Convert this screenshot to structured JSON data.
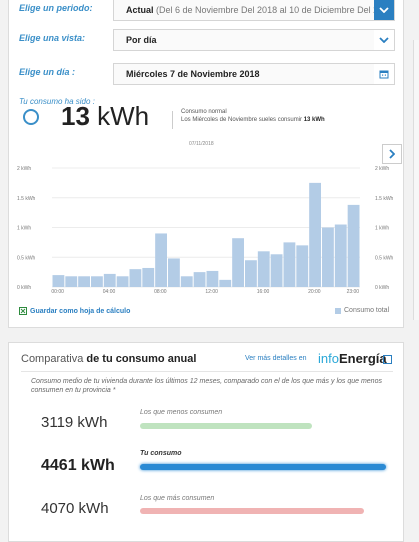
{
  "filters": {
    "periodo": {
      "label": "Elige un periodo:",
      "value_strong": "Actual",
      "value_rest": " (Del 6 de Noviembre Del 2018 al 10 de Diciembre Del 20..."
    },
    "vista": {
      "label": "Elige una vista:",
      "value": "Por día"
    },
    "dia": {
      "label": "Elige un día :",
      "value": "Miércoles 7 de Noviembre 2018"
    }
  },
  "summary": {
    "label": "Tu consumo ha sido :",
    "value": "13",
    "unit": " kWh",
    "normal_label": "Consumo normal",
    "normal_text_prefix": "Los Miércoles de Noviembre sueles consumir ",
    "normal_value": "13 kWh"
  },
  "chart_data": {
    "type": "bar",
    "title": "07/11/2018",
    "categories": [
      "00:00",
      "01:00",
      "02:00",
      "03:00",
      "04:00",
      "05:00",
      "06:00",
      "07:00",
      "08:00",
      "09:00",
      "10:00",
      "11:00",
      "12:00",
      "13:00",
      "14:00",
      "15:00",
      "16:00",
      "17:00",
      "18:00",
      "19:00",
      "20:00",
      "21:00",
      "22:00",
      "23:00"
    ],
    "series": [
      {
        "name": "Consumo total",
        "values": [
          0.2,
          0.18,
          0.18,
          0.18,
          0.22,
          0.18,
          0.3,
          0.32,
          0.9,
          0.48,
          0.18,
          0.25,
          0.27,
          0.12,
          0.82,
          0.45,
          0.6,
          0.55,
          0.75,
          0.7,
          1.75,
          1.0,
          1.05,
          1.38
        ]
      }
    ],
    "ylim": [
      0,
      2
    ],
    "yticks": [
      "0 kWh",
      "0.5 kWh",
      "1 kWh",
      "1.5 kWh",
      "2 kWh"
    ],
    "xtick_labels": [
      "00:00",
      "04:00",
      "08:00",
      "12:00",
      "16:00",
      "20:00",
      "23:00"
    ],
    "bar_color": "#b3cce6"
  },
  "actions": {
    "save_label": "Guardar como hoja de cálculo",
    "legend_label": "Consumo total"
  },
  "comparativa": {
    "title_light": "Comparativa",
    "title_strong": " de tu consumo anual",
    "more_link": "Ver más detalles en",
    "brand_light": "info",
    "brand_strong": "Energía",
    "description": "Consumo medio de tu vivienda durante los últimos 12 meses, comparado con el de los que más y los que menos consumen en tu provincia *",
    "rows": [
      {
        "value": "3119 kWh",
        "label": "Los que menos consumen",
        "color": "#bfe3bf"
      },
      {
        "value": "4461 kWh",
        "label": "Tu consumo",
        "color": "#2a8ad4"
      },
      {
        "value": "4070 kWh",
        "label": "Los que más consumen",
        "color": "#f0b3b3"
      }
    ]
  }
}
